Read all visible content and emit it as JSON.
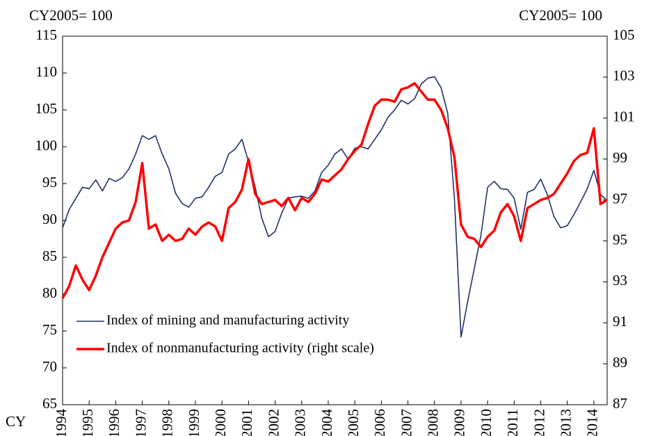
{
  "chart_data": {
    "type": "line",
    "y_label": "CY2005= 100",
    "y2_label": "CY2005= 100",
    "x_label": "CY",
    "x": [
      1994,
      1994.25,
      1994.5,
      1994.75,
      1995,
      1995.25,
      1995.5,
      1995.75,
      1996,
      1996.25,
      1996.5,
      1996.75,
      1997,
      1997.25,
      1997.5,
      1997.75,
      1998,
      1998.25,
      1998.5,
      1998.75,
      1999,
      1999.25,
      1999.5,
      1999.75,
      2000,
      2000.25,
      2000.5,
      2000.75,
      2001,
      2001.25,
      2001.5,
      2001.75,
      2002,
      2002.25,
      2002.5,
      2002.75,
      2003,
      2003.25,
      2003.5,
      2003.75,
      2004,
      2004.25,
      2004.5,
      2004.75,
      2005,
      2005.25,
      2005.5,
      2005.75,
      2006,
      2006.25,
      2006.5,
      2006.75,
      2007,
      2007.25,
      2007.5,
      2007.75,
      2008,
      2008.25,
      2008.5,
      2008.75,
      2009,
      2009.25,
      2009.5,
      2009.75,
      2010,
      2010.25,
      2010.5,
      2010.75,
      2011,
      2011.25,
      2011.5,
      2011.75,
      2012,
      2012.25,
      2012.5,
      2012.75,
      2013,
      2013.25,
      2013.5,
      2013.75,
      2014,
      2014.25,
      2014.5
    ],
    "xlim": [
      1994,
      2014.5
    ],
    "xticks": [
      1994,
      1995,
      1996,
      1997,
      1998,
      1999,
      2000,
      2001,
      2002,
      2003,
      2004,
      2005,
      2006,
      2007,
      2008,
      2009,
      2010,
      2011,
      2012,
      2013,
      2014
    ],
    "ylim": [
      65,
      115
    ],
    "yticks": [
      65,
      70,
      75,
      80,
      85,
      90,
      95,
      100,
      105,
      110,
      115
    ],
    "y2lim": [
      87,
      105
    ],
    "y2ticks": [
      87,
      89,
      91,
      93,
      95,
      97,
      99,
      101,
      103,
      105
    ],
    "legend": "lower left",
    "series": [
      {
        "name": "Index of mining and manufacturing activity",
        "color": "#1f2f6b",
        "values": [
          89,
          91.5,
          93,
          94.5,
          94.3,
          95.5,
          94,
          95.7,
          95.3,
          95.8,
          97,
          99,
          101.5,
          101,
          101.5,
          99,
          97,
          93.7,
          92.3,
          91.8,
          93,
          93.2,
          94.5,
          96,
          96.5,
          99,
          99.7,
          101,
          98,
          94.5,
          90.3,
          87.8,
          88.5,
          91,
          93,
          93.2,
          93.3,
          93,
          94,
          96.5,
          97.5,
          99,
          99.7,
          98.3,
          99.8,
          100,
          99.7,
          101,
          102.3,
          104,
          105,
          106.3,
          105.8,
          106.5,
          108.5,
          109.3,
          109.5,
          108,
          104.5,
          93,
          74.2,
          79,
          83.5,
          88,
          94.5,
          95.3,
          94.3,
          94.2,
          93,
          88.8,
          93.8,
          94.2,
          95.6,
          93.5,
          90.5,
          89,
          89.3,
          90.8,
          92.5,
          94.3,
          96.8,
          93.5,
          92.7
        ]
      },
      {
        "name": "Index of nonmanufacturing activity (right scale)",
        "color": "#ff0000",
        "axis": "y2",
        "values": [
          92.2,
          92.8,
          93.8,
          93.1,
          92.6,
          93.3,
          94.2,
          94.9,
          95.6,
          95.9,
          96.0,
          96.9,
          98.8,
          95.6,
          95.8,
          95.0,
          95.3,
          95.0,
          95.1,
          95.6,
          95.3,
          95.7,
          95.9,
          95.7,
          95.0,
          96.6,
          96.9,
          97.5,
          99.0,
          97.3,
          96.8,
          96.9,
          97.0,
          96.7,
          97.1,
          96.5,
          97.1,
          96.9,
          97.3,
          98.0,
          97.9,
          98.2,
          98.5,
          99.0,
          99.4,
          99.7,
          100.7,
          101.6,
          101.9,
          101.9,
          101.8,
          102.4,
          102.5,
          102.7,
          102.3,
          101.9,
          101.9,
          101.4,
          100.5,
          99.1,
          95.8,
          95.2,
          95.1,
          94.7,
          95.2,
          95.5,
          96.4,
          96.8,
          96.2,
          95.0,
          96.6,
          96.8,
          97.0,
          97.1,
          97.3,
          97.8,
          98.3,
          98.9,
          99.2,
          99.3,
          100.5,
          96.8,
          97.0
        ]
      }
    ]
  }
}
